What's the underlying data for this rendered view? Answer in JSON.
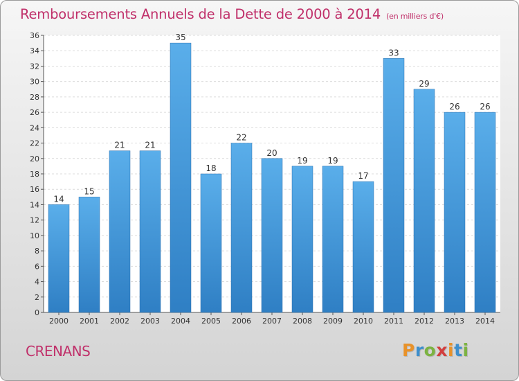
{
  "chart_data": {
    "type": "bar",
    "title": "Remboursements Annuels de la Dette de 2000 à 2014",
    "subtitle": "(en milliers d'€)",
    "categories": [
      "2000",
      "2001",
      "2002",
      "2003",
      "2004",
      "2005",
      "2006",
      "2007",
      "2008",
      "2009",
      "2010",
      "2011",
      "2012",
      "2013",
      "2014"
    ],
    "values": [
      14,
      15,
      21,
      21,
      35,
      18,
      22,
      20,
      19,
      19,
      17,
      33,
      29,
      26,
      26
    ],
    "ylim": [
      0,
      36
    ],
    "yticks": [
      0,
      2,
      4,
      6,
      8,
      10,
      12,
      14,
      16,
      18,
      20,
      22,
      24,
      26,
      28,
      30,
      32,
      34,
      36
    ],
    "grid": true,
    "colors": {
      "bar_light": "#5aaeea",
      "bar_dark": "#2f7fc4",
      "title": "#c0306a"
    }
  },
  "footer": {
    "commune": "CRENANS",
    "logo_letters": [
      "P",
      "r",
      "o",
      "x",
      "i",
      "t",
      "i"
    ],
    "logo_colors": [
      "#e8922a",
      "#3e8fcc",
      "#7cb342",
      "#d23f3f",
      "#e8922a",
      "#3e8fcc",
      "#7cb342"
    ]
  }
}
